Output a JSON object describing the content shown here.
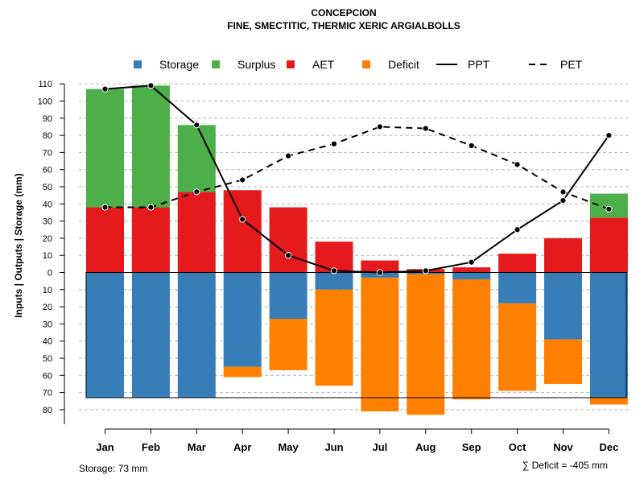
{
  "chart_data": {
    "type": "bar",
    "title": "CONCEPCION",
    "subtitle": "FINE, SMECTITIC, THERMIC XERIC ARGIALBOLLS",
    "ylabel": "Inputs | Outputs | Storage    (mm)",
    "categories": [
      "Jan",
      "Feb",
      "Mar",
      "Apr",
      "May",
      "Jun",
      "Jul",
      "Aug",
      "Sep",
      "Oct",
      "Nov",
      "Dec"
    ],
    "ylim": [
      -80,
      110
    ],
    "yticks": [
      110,
      100,
      90,
      80,
      70,
      60,
      50,
      40,
      30,
      20,
      10,
      0,
      -10,
      -20,
      -30,
      -40,
      -50,
      -60,
      -70,
      -80
    ],
    "ytick_labels": [
      "110",
      "100",
      "90",
      "80",
      "70",
      "60",
      "50",
      "40",
      "30",
      "20",
      "10",
      "0",
      "10",
      "20",
      "30",
      "40",
      "50",
      "60",
      "70",
      "80"
    ],
    "series": [
      {
        "name": "Storage",
        "color": "#377EB8",
        "values": [
          73,
          73,
          73,
          55,
          27,
          10,
          3,
          1,
          4,
          18,
          39,
          73
        ]
      },
      {
        "name": "Surplus",
        "color": "#4DAF4A",
        "values": [
          69,
          71,
          39,
          0,
          0,
          0,
          0,
          0,
          0,
          0,
          0,
          14
        ]
      },
      {
        "name": "AET",
        "color": "#E41A1C",
        "values": [
          38,
          38,
          47,
          48,
          38,
          18,
          7,
          2,
          3,
          11,
          20,
          32
        ]
      },
      {
        "name": "Deficit",
        "color": "#FF7F00",
        "values": [
          0,
          0,
          0,
          6,
          30,
          56,
          78,
          82,
          70,
          51,
          26,
          4
        ]
      },
      {
        "name": "PPT",
        "style": "solid",
        "color": "#000000",
        "values": [
          107,
          109,
          86,
          31,
          10,
          1,
          0,
          1,
          6,
          25,
          42,
          80
        ]
      },
      {
        "name": "PET",
        "style": "dashed",
        "color": "#000000",
        "values": [
          38,
          38,
          47,
          54,
          68,
          75,
          85,
          84,
          74,
          63,
          47,
          37
        ]
      }
    ],
    "storage_capacity": 73,
    "grid": true,
    "legend": "top"
  },
  "footer": {
    "storage_note": "Storage: 73 mm",
    "deficit_note": "∑ Deficit = -405 mm"
  }
}
